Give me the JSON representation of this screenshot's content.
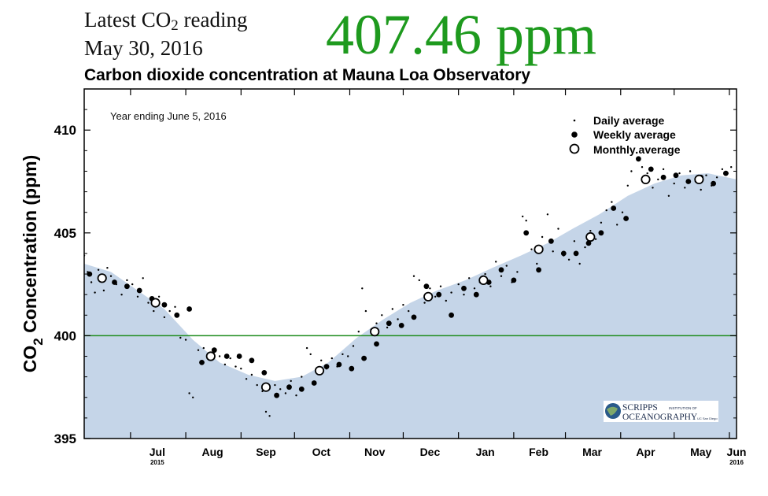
{
  "header": {
    "latest_label_main": "Latest CO",
    "latest_label_sub": "2",
    "latest_label_tail": " reading",
    "reading_date": "May 30, 2016",
    "reading_value": "407.46 ppm",
    "reading_color": "#1e9a1e"
  },
  "chart_data": {
    "type": "scatter",
    "title": "Carbon dioxide concentration at Mauna Loa Observatory",
    "annotation": "Year ending June 5, 2016",
    "ylabel_main": "CO",
    "ylabel_sub": "2",
    "ylabel_tail": " Concentration (ppm)",
    "ylim": [
      395,
      412
    ],
    "yticks": [
      395,
      400,
      405,
      410
    ],
    "x_tick_labels": [
      "Jul",
      "Aug",
      "Sep",
      "Oct",
      "Nov",
      "Dec",
      "Jan",
      "Feb",
      "Mar",
      "Apr",
      "May",
      "Jun"
    ],
    "x_tick_years": {
      "Jul": "2015",
      "Jun": "2016"
    },
    "reference_line": 400,
    "reference_color": "#1e8c1e",
    "fill_color": "#c5d5e8",
    "legend": {
      "position": "top-right",
      "daily": "Daily average",
      "weekly": "Weekly average",
      "monthly": "Monthly average"
    },
    "logo_text": [
      "SCRIPPS",
      "INSTITUTION OF",
      "OCEANOGRAPHY",
      "UC San Diego"
    ],
    "seasonal_curve": [
      {
        "x": "2015-06-05",
        "y": 403.5
      },
      {
        "x": "2015-06-20",
        "y": 403.1
      },
      {
        "x": "2015-07-05",
        "y": 402.2
      },
      {
        "x": "2015-07-20",
        "y": 401.3
      },
      {
        "x": "2015-08-05",
        "y": 399.8
      },
      {
        "x": "2015-08-20",
        "y": 398.7
      },
      {
        "x": "2015-09-05",
        "y": 398.1
      },
      {
        "x": "2015-09-20",
        "y": 397.8
      },
      {
        "x": "2015-10-05",
        "y": 398.0
      },
      {
        "x": "2015-10-20",
        "y": 398.7
      },
      {
        "x": "2015-11-05",
        "y": 399.9
      },
      {
        "x": "2015-11-20",
        "y": 400.8
      },
      {
        "x": "2015-12-05",
        "y": 401.6
      },
      {
        "x": "2015-12-20",
        "y": 402.2
      },
      {
        "x": "2016-01-05",
        "y": 402.7
      },
      {
        "x": "2016-01-20",
        "y": 403.3
      },
      {
        "x": "2016-02-05",
        "y": 403.9
      },
      {
        "x": "2016-02-20",
        "y": 404.5
      },
      {
        "x": "2016-03-05",
        "y": 405.2
      },
      {
        "x": "2016-03-20",
        "y": 405.9
      },
      {
        "x": "2016-04-05",
        "y": 406.8
      },
      {
        "x": "2016-04-20",
        "y": 407.4
      },
      {
        "x": "2016-05-05",
        "y": 407.8
      },
      {
        "x": "2016-05-20",
        "y": 407.9
      },
      {
        "x": "2016-06-05",
        "y": 407.6
      }
    ],
    "monthly": [
      {
        "x": "2015-06-15",
        "y": 402.8
      },
      {
        "x": "2015-07-15",
        "y": 401.6
      },
      {
        "x": "2015-08-15",
        "y": 399.0
      },
      {
        "x": "2015-09-15",
        "y": 397.5
      },
      {
        "x": "2015-10-15",
        "y": 398.3
      },
      {
        "x": "2015-11-15",
        "y": 400.2
      },
      {
        "x": "2015-12-15",
        "y": 401.9
      },
      {
        "x": "2016-01-15",
        "y": 402.7
      },
      {
        "x": "2016-02-15",
        "y": 404.2
      },
      {
        "x": "2016-03-15",
        "y": 404.8
      },
      {
        "x": "2016-04-15",
        "y": 407.6
      },
      {
        "x": "2016-05-15",
        "y": 407.6
      }
    ],
    "weekly": [
      {
        "x": "2015-06-08",
        "y": 403.0
      },
      {
        "x": "2015-06-15",
        "y": 402.8
      },
      {
        "x": "2015-06-22",
        "y": 402.6
      },
      {
        "x": "2015-06-29",
        "y": 402.4
      },
      {
        "x": "2015-07-06",
        "y": 402.2
      },
      {
        "x": "2015-07-13",
        "y": 401.8
      },
      {
        "x": "2015-07-20",
        "y": 401.5
      },
      {
        "x": "2015-07-27",
        "y": 401.0
      },
      {
        "x": "2015-08-03",
        "y": 401.3
      },
      {
        "x": "2015-08-10",
        "y": 398.7
      },
      {
        "x": "2015-08-17",
        "y": 399.3
      },
      {
        "x": "2015-08-24",
        "y": 399.0
      },
      {
        "x": "2015-08-31",
        "y": 399.0
      },
      {
        "x": "2015-09-07",
        "y": 398.8
      },
      {
        "x": "2015-09-14",
        "y": 398.2
      },
      {
        "x": "2015-09-21",
        "y": 397.1
      },
      {
        "x": "2015-09-28",
        "y": 397.5
      },
      {
        "x": "2015-10-05",
        "y": 397.4
      },
      {
        "x": "2015-10-12",
        "y": 397.7
      },
      {
        "x": "2015-10-19",
        "y": 398.5
      },
      {
        "x": "2015-10-26",
        "y": 398.6
      },
      {
        "x": "2015-11-02",
        "y": 398.4
      },
      {
        "x": "2015-11-09",
        "y": 398.9
      },
      {
        "x": "2015-11-16",
        "y": 399.6
      },
      {
        "x": "2015-11-23",
        "y": 400.6
      },
      {
        "x": "2015-11-30",
        "y": 400.5
      },
      {
        "x": "2015-12-07",
        "y": 400.9
      },
      {
        "x": "2015-12-14",
        "y": 402.4
      },
      {
        "x": "2015-12-21",
        "y": 402.0
      },
      {
        "x": "2015-12-28",
        "y": 401.0
      },
      {
        "x": "2016-01-04",
        "y": 402.3
      },
      {
        "x": "2016-01-11",
        "y": 402.0
      },
      {
        "x": "2016-01-18",
        "y": 402.6
      },
      {
        "x": "2016-01-25",
        "y": 403.2
      },
      {
        "x": "2016-02-01",
        "y": 402.7
      },
      {
        "x": "2016-02-08",
        "y": 405.0
      },
      {
        "x": "2016-02-15",
        "y": 403.2
      },
      {
        "x": "2016-02-22",
        "y": 404.6
      },
      {
        "x": "2016-02-29",
        "y": 404.0
      },
      {
        "x": "2016-03-07",
        "y": 404.0
      },
      {
        "x": "2016-03-14",
        "y": 404.5
      },
      {
        "x": "2016-03-21",
        "y": 405.0
      },
      {
        "x": "2016-03-28",
        "y": 406.2
      },
      {
        "x": "2016-04-04",
        "y": 405.7
      },
      {
        "x": "2016-04-11",
        "y": 408.6
      },
      {
        "x": "2016-04-18",
        "y": 408.1
      },
      {
        "x": "2016-04-25",
        "y": 407.7
      },
      {
        "x": "2016-05-02",
        "y": 407.8
      },
      {
        "x": "2016-05-09",
        "y": 407.5
      },
      {
        "x": "2016-05-16",
        "y": 407.7
      },
      {
        "x": "2016-05-23",
        "y": 407.4
      },
      {
        "x": "2016-05-30",
        "y": 407.9
      }
    ],
    "daily": [
      {
        "x": "2015-06-05",
        "y": 403.9
      },
      {
        "x": "2015-06-07",
        "y": 403.1
      },
      {
        "x": "2015-06-09",
        "y": 402.6
      },
      {
        "x": "2015-06-11",
        "y": 402.1
      },
      {
        "x": "2015-06-13",
        "y": 403.2
      },
      {
        "x": "2015-06-16",
        "y": 402.2
      },
      {
        "x": "2015-06-18",
        "y": 403.3
      },
      {
        "x": "2015-06-20",
        "y": 402.9
      },
      {
        "x": "2015-06-23",
        "y": 402.5
      },
      {
        "x": "2015-06-26",
        "y": 402.0
      },
      {
        "x": "2015-06-29",
        "y": 402.7
      },
      {
        "x": "2015-07-02",
        "y": 402.5
      },
      {
        "x": "2015-07-05",
        "y": 401.9
      },
      {
        "x": "2015-07-08",
        "y": 402.8
      },
      {
        "x": "2015-07-11",
        "y": 401.6
      },
      {
        "x": "2015-07-14",
        "y": 401.2
      },
      {
        "x": "2015-07-17",
        "y": 401.9
      },
      {
        "x": "2015-07-20",
        "y": 400.9
      },
      {
        "x": "2015-07-23",
        "y": 401.2
      },
      {
        "x": "2015-07-26",
        "y": 401.4
      },
      {
        "x": "2015-07-29",
        "y": 399.9
      },
      {
        "x": "2015-08-01",
        "y": 399.8
      },
      {
        "x": "2015-08-03",
        "y": 397.2
      },
      {
        "x": "2015-08-05",
        "y": 397.0
      },
      {
        "x": "2015-08-08",
        "y": 399.3
      },
      {
        "x": "2015-08-11",
        "y": 399.4
      },
      {
        "x": "2015-08-14",
        "y": 398.9
      },
      {
        "x": "2015-08-17",
        "y": 399.2
      },
      {
        "x": "2015-08-20",
        "y": 399.0
      },
      {
        "x": "2015-08-23",
        "y": 398.6
      },
      {
        "x": "2015-08-26",
        "y": 398.9
      },
      {
        "x": "2015-08-29",
        "y": 398.5
      },
      {
        "x": "2015-09-01",
        "y": 398.4
      },
      {
        "x": "2015-09-04",
        "y": 397.9
      },
      {
        "x": "2015-09-07",
        "y": 398.1
      },
      {
        "x": "2015-09-10",
        "y": 397.6
      },
      {
        "x": "2015-09-13",
        "y": 397.3
      },
      {
        "x": "2015-09-15",
        "y": 396.3
      },
      {
        "x": "2015-09-17",
        "y": 396.1
      },
      {
        "x": "2015-09-20",
        "y": 397.6
      },
      {
        "x": "2015-09-23",
        "y": 397.4
      },
      {
        "x": "2015-09-26",
        "y": 397.2
      },
      {
        "x": "2015-09-29",
        "y": 397.8
      },
      {
        "x": "2015-10-02",
        "y": 397.1
      },
      {
        "x": "2015-10-05",
        "y": 398.0
      },
      {
        "x": "2015-10-08",
        "y": 399.4
      },
      {
        "x": "2015-10-10",
        "y": 399.1
      },
      {
        "x": "2015-10-13",
        "y": 398.3
      },
      {
        "x": "2015-10-16",
        "y": 398.8
      },
      {
        "x": "2015-10-19",
        "y": 398.4
      },
      {
        "x": "2015-10-22",
        "y": 398.9
      },
      {
        "x": "2015-10-25",
        "y": 398.5
      },
      {
        "x": "2015-10-28",
        "y": 399.1
      },
      {
        "x": "2015-10-31",
        "y": 399.0
      },
      {
        "x": "2015-11-03",
        "y": 399.5
      },
      {
        "x": "2015-11-06",
        "y": 400.2
      },
      {
        "x": "2015-11-08",
        "y": 402.3
      },
      {
        "x": "2015-11-10",
        "y": 401.2
      },
      {
        "x": "2015-11-13",
        "y": 400.3
      },
      {
        "x": "2015-11-16",
        "y": 400.6
      },
      {
        "x": "2015-11-19",
        "y": 401.0
      },
      {
        "x": "2015-11-22",
        "y": 400.4
      },
      {
        "x": "2015-11-25",
        "y": 401.3
      },
      {
        "x": "2015-11-28",
        "y": 400.8
      },
      {
        "x": "2015-12-01",
        "y": 401.5
      },
      {
        "x": "2015-12-04",
        "y": 401.2
      },
      {
        "x": "2015-12-07",
        "y": 402.9
      },
      {
        "x": "2015-12-10",
        "y": 402.7
      },
      {
        "x": "2015-12-13",
        "y": 401.6
      },
      {
        "x": "2015-12-16",
        "y": 402.3
      },
      {
        "x": "2015-12-19",
        "y": 401.9
      },
      {
        "x": "2015-12-22",
        "y": 402.4
      },
      {
        "x": "2015-12-25",
        "y": 401.7
      },
      {
        "x": "2015-12-28",
        "y": 402.1
      },
      {
        "x": "2016-01-01",
        "y": 402.5
      },
      {
        "x": "2016-01-04",
        "y": 402.0
      },
      {
        "x": "2016-01-07",
        "y": 402.8
      },
      {
        "x": "2016-01-10",
        "y": 402.3
      },
      {
        "x": "2016-01-13",
        "y": 402.6
      },
      {
        "x": "2016-01-16",
        "y": 403.0
      },
      {
        "x": "2016-01-19",
        "y": 402.4
      },
      {
        "x": "2016-01-22",
        "y": 403.6
      },
      {
        "x": "2016-01-25",
        "y": 402.9
      },
      {
        "x": "2016-01-28",
        "y": 403.4
      },
      {
        "x": "2016-01-31",
        "y": 402.6
      },
      {
        "x": "2016-02-03",
        "y": 403.1
      },
      {
        "x": "2016-02-06",
        "y": 405.8
      },
      {
        "x": "2016-02-08",
        "y": 405.6
      },
      {
        "x": "2016-02-11",
        "y": 404.2
      },
      {
        "x": "2016-02-14",
        "y": 403.5
      },
      {
        "x": "2016-02-17",
        "y": 404.8
      },
      {
        "x": "2016-02-20",
        "y": 405.9
      },
      {
        "x": "2016-02-23",
        "y": 404.1
      },
      {
        "x": "2016-02-26",
        "y": 405.2
      },
      {
        "x": "2016-02-29",
        "y": 403.9
      },
      {
        "x": "2016-03-03",
        "y": 403.7
      },
      {
        "x": "2016-03-06",
        "y": 404.6
      },
      {
        "x": "2016-03-09",
        "y": 403.5
      },
      {
        "x": "2016-03-12",
        "y": 404.3
      },
      {
        "x": "2016-03-15",
        "y": 405.1
      },
      {
        "x": "2016-03-18",
        "y": 404.7
      },
      {
        "x": "2016-03-21",
        "y": 405.5
      },
      {
        "x": "2016-03-24",
        "y": 406.1
      },
      {
        "x": "2016-03-27",
        "y": 406.5
      },
      {
        "x": "2016-03-30",
        "y": 405.4
      },
      {
        "x": "2016-04-02",
        "y": 406.0
      },
      {
        "x": "2016-04-05",
        "y": 407.3
      },
      {
        "x": "2016-04-07",
        "y": 408.0
      },
      {
        "x": "2016-04-10",
        "y": 408.9
      },
      {
        "x": "2016-04-13",
        "y": 408.2
      },
      {
        "x": "2016-04-16",
        "y": 407.9
      },
      {
        "x": "2016-04-19",
        "y": 407.2
      },
      {
        "x": "2016-04-22",
        "y": 407.6
      },
      {
        "x": "2016-04-25",
        "y": 408.1
      },
      {
        "x": "2016-04-28",
        "y": 406.8
      },
      {
        "x": "2016-05-01",
        "y": 407.4
      },
      {
        "x": "2016-05-04",
        "y": 407.9
      },
      {
        "x": "2016-05-07",
        "y": 407.2
      },
      {
        "x": "2016-05-10",
        "y": 408.0
      },
      {
        "x": "2016-05-13",
        "y": 407.5
      },
      {
        "x": "2016-05-16",
        "y": 407.1
      },
      {
        "x": "2016-05-19",
        "y": 407.8
      },
      {
        "x": "2016-05-22",
        "y": 407.3
      },
      {
        "x": "2016-05-25",
        "y": 407.7
      },
      {
        "x": "2016-05-28",
        "y": 408.1
      },
      {
        "x": "2016-05-31",
        "y": 407.9
      },
      {
        "x": "2016-06-02",
        "y": 408.2
      }
    ]
  }
}
